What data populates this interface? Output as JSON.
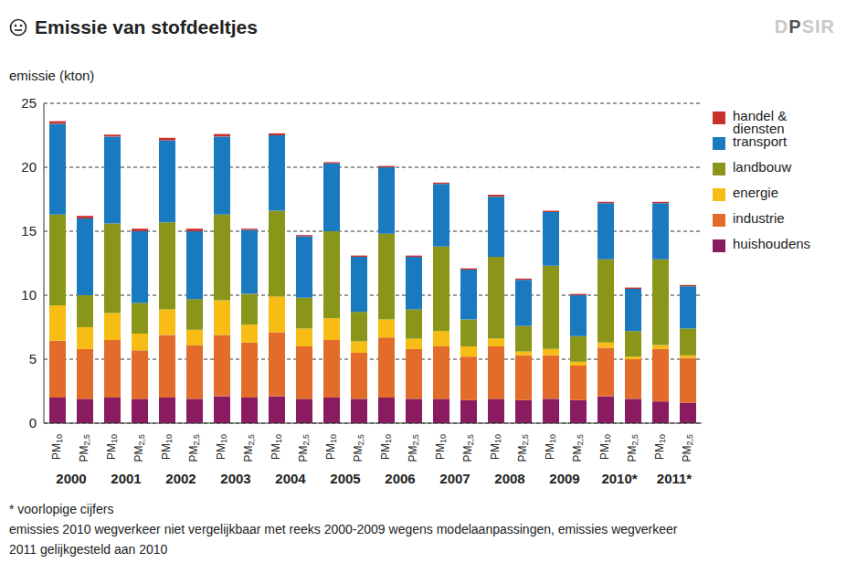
{
  "chart_data": {
    "type": "bar",
    "title": "Emissie van stofdeeltjes",
    "badge": "DPSIR",
    "ylabel": "emissie (kton)",
    "stacked": true,
    "grid": true,
    "legend": "right",
    "categories": [
      "PM10",
      "PM2,5",
      "PM10",
      "PM2,5",
      "PM10",
      "PM2,5",
      "PM10",
      "PM2,5",
      "PM10",
      "PM2,5",
      "PM10",
      "PM2,5",
      "PM10",
      "PM2,5",
      "PM10",
      "PM2,5",
      "PM10",
      "PM2,5",
      "PM10",
      "PM2,5",
      "PM10",
      "PM2,5",
      "PM10",
      "PM2,5"
    ],
    "x_groups": [
      "2000",
      "2001",
      "2002",
      "2003",
      "2004",
      "2005",
      "2006",
      "2007",
      "2008",
      "2009",
      "2010*",
      "2011*"
    ],
    "ylim": [
      0,
      25
    ],
    "yticks": [
      0,
      5,
      10,
      15,
      20,
      25
    ],
    "series": [
      {
        "name": "huishoudens",
        "color": "#8a1b61",
        "values": [
          2.0,
          1.9,
          2.0,
          1.9,
          2.0,
          1.9,
          2.1,
          2.0,
          2.1,
          1.9,
          2.0,
          1.9,
          2.0,
          1.9,
          1.9,
          1.8,
          1.9,
          1.8,
          1.9,
          1.8,
          2.1,
          1.9,
          1.7,
          1.6
        ]
      },
      {
        "name": "industrie",
        "color": "#e36c2a",
        "values": [
          4.45,
          3.9,
          4.5,
          3.8,
          4.9,
          4.2,
          4.8,
          4.3,
          5.0,
          4.1,
          4.5,
          3.6,
          4.7,
          3.9,
          4.1,
          3.4,
          4.1,
          3.5,
          3.4,
          2.7,
          3.8,
          3.1,
          4.1,
          3.5
        ]
      },
      {
        "name": "energie",
        "color": "#f7bd14",
        "values": [
          2.75,
          1.7,
          2.1,
          1.3,
          2.0,
          1.2,
          2.7,
          1.4,
          2.8,
          1.4,
          1.7,
          0.9,
          1.4,
          0.8,
          1.2,
          0.8,
          0.6,
          0.3,
          0.5,
          0.3,
          0.4,
          0.2,
          0.3,
          0.2
        ]
      },
      {
        "name": "landbouw",
        "color": "#8a9619",
        "values": [
          7.1,
          2.5,
          7.0,
          2.4,
          6.8,
          2.4,
          6.7,
          2.4,
          6.7,
          2.4,
          6.8,
          2.3,
          6.7,
          2.3,
          6.6,
          2.1,
          6.4,
          2.0,
          6.5,
          2.0,
          6.5,
          2.0,
          6.7,
          2.1
        ]
      },
      {
        "name": "transport",
        "color": "#1a7ac0",
        "values": [
          7.1,
          6.0,
          6.8,
          5.6,
          6.4,
          5.3,
          6.1,
          5.0,
          5.9,
          4.8,
          5.3,
          4.3,
          5.2,
          4.1,
          4.9,
          3.9,
          4.7,
          3.6,
          4.2,
          3.2,
          4.4,
          3.3,
          4.4,
          3.3
        ]
      },
      {
        "name": "handel & diensten",
        "color": "#c8322d",
        "values": [
          0.2,
          0.2,
          0.15,
          0.2,
          0.2,
          0.2,
          0.2,
          0.1,
          0.15,
          0.1,
          0.1,
          0.1,
          0.1,
          0.1,
          0.1,
          0.1,
          0.15,
          0.1,
          0.1,
          0.1,
          0.1,
          0.1,
          0.1,
          0.1
        ]
      }
    ],
    "notes": [
      "* voorlopige cijfers",
      "emissies 2010 wegverkeer niet vergelijkbaar met reeks 2000-2009 wegens modelaanpassingen, emissies wegverkeer",
      "2011 gelijkgesteld aan 2010"
    ]
  }
}
